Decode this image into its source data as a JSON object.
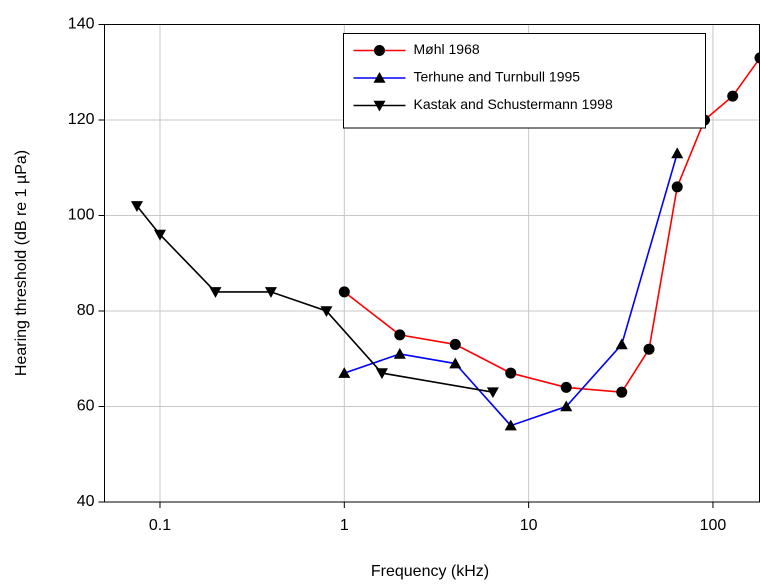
{
  "chart_data": {
    "type": "line",
    "xlabel": "Frequency (kHz)",
    "ylabel": "Hearing threshold (dB re 1 µPa)",
    "xscale": "log",
    "xlim": [
      0.05,
      180
    ],
    "xticks": [
      0.1,
      1,
      10,
      100
    ],
    "ylim": [
      40,
      140
    ],
    "yticks": [
      40,
      60,
      80,
      100,
      120,
      140
    ],
    "grid": true,
    "legend": "upper right",
    "series": [
      {
        "name": "Møhl 1968",
        "color": "#ff0000",
        "marker": "circle",
        "x": [
          1,
          2,
          4,
          8,
          16,
          32,
          45,
          64,
          90,
          128,
          180
        ],
        "values": [
          84,
          75,
          73,
          67,
          64,
          63,
          72,
          106,
          120,
          125,
          133
        ]
      },
      {
        "name": "Terhune and Turnbull 1995",
        "color": "#0000ff",
        "marker": "triangle-up",
        "x": [
          1,
          2,
          4,
          8,
          16,
          32,
          64
        ],
        "values": [
          67,
          71,
          69,
          56,
          60,
          73,
          113
        ]
      },
      {
        "name": "Kastak and Schustermann 1998",
        "color": "#000000",
        "marker": "triangle-down",
        "x": [
          0.075,
          0.1,
          0.2,
          0.4,
          0.8,
          1.6,
          6.4
        ],
        "values": [
          102,
          96,
          84,
          84,
          80,
          67,
          63
        ]
      }
    ]
  }
}
